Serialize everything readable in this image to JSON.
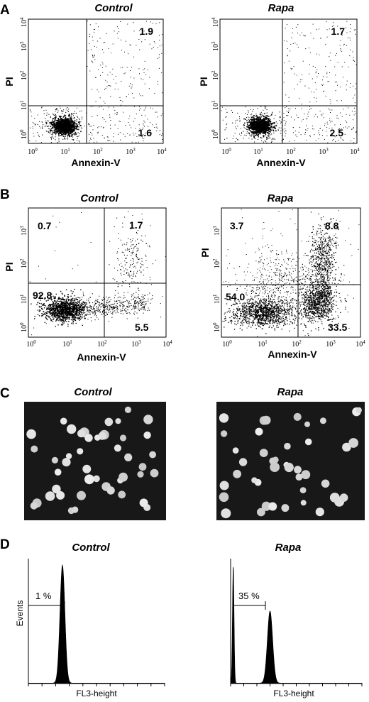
{
  "panels": {
    "A": "A",
    "B": "B",
    "C": "C",
    "D": "D"
  },
  "chart_data": [
    {
      "panel": "A",
      "type": "scatter",
      "title": "Control",
      "xlabel": "Annexin-V",
      "ylabel": "PI",
      "scale": "log",
      "xlim": [
        1,
        10000
      ],
      "ylim": [
        1,
        10000
      ],
      "x_ticks": [
        "10",
        "10",
        "10",
        "10",
        "10"
      ],
      "x_tick_exponents": [
        "0",
        "1",
        "2",
        "3",
        "4"
      ],
      "y_ticks": [
        "10",
        "10",
        "10",
        "10",
        "10"
      ],
      "y_tick_exponents": [
        "0",
        "1",
        "2",
        "3",
        "4"
      ],
      "quadrant_labels": {
        "upper_right": "1.9",
        "lower_right": "1.6"
      },
      "gates": {
        "x": 40,
        "y": 30
      }
    },
    {
      "panel": "A",
      "type": "scatter",
      "title": "Rapa",
      "xlabel": "Annexin-V",
      "ylabel": "PI",
      "scale": "log",
      "xlim": [
        1,
        10000
      ],
      "ylim": [
        1,
        10000
      ],
      "x_ticks": [
        "10",
        "10",
        "10",
        "10",
        "10"
      ],
      "x_tick_exponents": [
        "0",
        "1",
        "2",
        "3",
        "4"
      ],
      "y_ticks": [
        "10",
        "10",
        "10",
        "10",
        "10"
      ],
      "y_tick_exponents": [
        "0",
        "1",
        "2",
        "3",
        "4"
      ],
      "quadrant_labels": {
        "upper_right": "1.7",
        "lower_right": "2.5"
      },
      "gates": {
        "x": 40,
        "y": 30
      }
    },
    {
      "panel": "B",
      "type": "scatter",
      "title": "Control",
      "xlabel": "Annexin-V",
      "ylabel": "PI",
      "scale": "log",
      "xlim": [
        1,
        10000
      ],
      "ylim": [
        1,
        10000
      ],
      "x_ticks": [
        "10",
        "10",
        "10",
        "10",
        "10"
      ],
      "x_tick_exponents": [
        "0",
        "1",
        "2",
        "3",
        "4"
      ],
      "y_ticks": [
        "10",
        "10",
        "10",
        "10"
      ],
      "y_tick_exponents": [
        "0",
        "1",
        "2",
        "3"
      ],
      "quadrant_labels": {
        "upper_left": "0.7",
        "upper_right": "1.7",
        "lower_left": "92.8",
        "lower_right": "5.5"
      },
      "gates": {
        "x": 120,
        "y": 22
      }
    },
    {
      "panel": "B",
      "type": "scatter",
      "title": "Rapa",
      "xlabel": "Annexin-V",
      "ylabel": "PI",
      "scale": "log",
      "xlim": [
        1,
        10000
      ],
      "ylim": [
        1,
        10000
      ],
      "x_ticks": [
        "10",
        "10",
        "10",
        "10",
        "10"
      ],
      "x_tick_exponents": [
        "0",
        "1",
        "2",
        "3",
        "4"
      ],
      "y_ticks": [
        "10",
        "10",
        "10",
        "10"
      ],
      "y_tick_exponents": [
        "0",
        "1",
        "2",
        "3"
      ],
      "quadrant_labels": {
        "upper_left": "3.7",
        "upper_right": "8.8",
        "lower_left": "54.0",
        "lower_right": "33.5"
      },
      "gates": {
        "x": 120,
        "y": 22
      }
    },
    {
      "panel": "D",
      "type": "area",
      "title": "Control",
      "xlabel": "FL3-height",
      "ylabel": "Events",
      "marker_label": "1 %",
      "peaks": [
        {
          "position": 0.25,
          "height": 0.95
        }
      ]
    },
    {
      "panel": "D",
      "type": "area",
      "title": "Rapa",
      "xlabel": "FL3-height",
      "ylabel": "Events",
      "marker_label": "35 %",
      "peaks": [
        {
          "position": 0.02,
          "height": 0.95
        },
        {
          "position": 0.3,
          "height": 0.58
        }
      ]
    }
  ],
  "micrographs": [
    {
      "title": "Control",
      "nucleus_count": 45
    },
    {
      "title": "Rapa",
      "nucleus_count": 42
    }
  ]
}
